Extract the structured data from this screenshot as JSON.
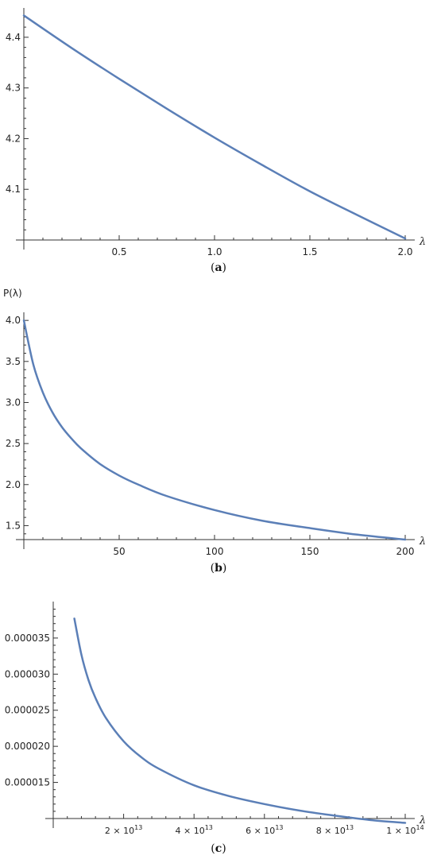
{
  "colors": {
    "curve": "#5b7fb7",
    "axis": "#333333",
    "text": "#222222"
  },
  "chart_data": [
    {
      "type": "line",
      "caption_letter": "a",
      "xlabel": "λ",
      "ylabel": "",
      "xlim": [
        0,
        2.0
      ],
      "ylim": [
        4.0,
        4.45
      ],
      "xticks": [
        {
          "v": 0.5,
          "label": "0.5"
        },
        {
          "v": 1.0,
          "label": "1.0"
        },
        {
          "v": 1.5,
          "label": "1.5"
        },
        {
          "v": 2.0,
          "label": "2.0"
        }
      ],
      "yticks": [
        {
          "v": 4.1,
          "label": "4.1"
        },
        {
          "v": 4.2,
          "label": "4.2"
        },
        {
          "v": 4.3,
          "label": "4.3"
        },
        {
          "v": 4.4,
          "label": "4.4"
        }
      ],
      "series": [
        {
          "x": [
            0,
            0.25,
            0.5,
            0.75,
            1.0,
            1.25,
            1.5,
            1.75,
            2.0
          ],
          "y": [
            4.443,
            4.379,
            4.318,
            4.259,
            4.202,
            4.148,
            4.096,
            4.049,
            4.003
          ]
        }
      ]
    },
    {
      "type": "line",
      "caption_letter": "b",
      "xlabel": "λ",
      "ylabel": "P(λ)",
      "xlim": [
        0,
        200
      ],
      "ylim": [
        1.33,
        4.05
      ],
      "xticks": [
        {
          "v": 50,
          "label": "50"
        },
        {
          "v": 100,
          "label": "100"
        },
        {
          "v": 150,
          "label": "150"
        },
        {
          "v": 200,
          "label": "200"
        }
      ],
      "yticks": [
        {
          "v": 1.5,
          "label": "1.5"
        },
        {
          "v": 2.0,
          "label": "2.0"
        },
        {
          "v": 2.5,
          "label": "2.5"
        },
        {
          "v": 3.0,
          "label": "3.0"
        },
        {
          "v": 3.5,
          "label": "3.5"
        },
        {
          "v": 4.0,
          "label": "4.0"
        }
      ],
      "series": [
        {
          "x": [
            0,
            5,
            10,
            15,
            20,
            25,
            30,
            40,
            50,
            60,
            75,
            100,
            125,
            150,
            175,
            200
          ],
          "y": [
            4.0,
            3.46,
            3.12,
            2.88,
            2.7,
            2.56,
            2.44,
            2.25,
            2.11,
            2.0,
            1.86,
            1.69,
            1.56,
            1.47,
            1.39,
            1.33
          ]
        }
      ]
    },
    {
      "type": "line",
      "caption_letter": "c",
      "xlabel": "λ",
      "ylabel": "",
      "xlim": [
        0,
        100000000000000.0
      ],
      "ylim": [
        1e-05,
        3.95e-05
      ],
      "xticks": [
        {
          "v": 20000000000000.0,
          "mant": "2",
          "exp": "13"
        },
        {
          "v": 40000000000000.0,
          "mant": "4",
          "exp": "13"
        },
        {
          "v": 60000000000000.0,
          "mant": "6",
          "exp": "13"
        },
        {
          "v": 80000000000000.0,
          "mant": "8",
          "exp": "13"
        },
        {
          "v": 100000000000000.0,
          "mant": "1",
          "exp": "14"
        }
      ],
      "yticks": [
        {
          "v": 1.5e-05,
          "label": "0.000015"
        },
        {
          "v": 2e-05,
          "label": "0.000020"
        },
        {
          "v": 2.5e-05,
          "label": "0.000025"
        },
        {
          "v": 3e-05,
          "label": "0.000030"
        },
        {
          "v": 3.5e-05,
          "label": "0.000035"
        }
      ],
      "series": [
        {
          "x": [
            6000000000000.0,
            8000000000000.0,
            10000000000000.0,
            12000000000000.0,
            15000000000000.0,
            20000000000000.0,
            25000000000000.0,
            30000000000000.0,
            40000000000000.0,
            50000000000000.0,
            60000000000000.0,
            70000000000000.0,
            80000000000000.0,
            90000000000000.0,
            100000000000000.0
          ],
          "y": [
            3.77e-05,
            3.27e-05,
            2.92e-05,
            2.67e-05,
            2.39e-05,
            2.07e-05,
            1.85e-05,
            1.69e-05,
            1.46e-05,
            1.31e-05,
            1.2e-05,
            1.11e-05,
            1.04e-05,
            9.8e-06,
            9.4e-06
          ]
        }
      ]
    }
  ]
}
